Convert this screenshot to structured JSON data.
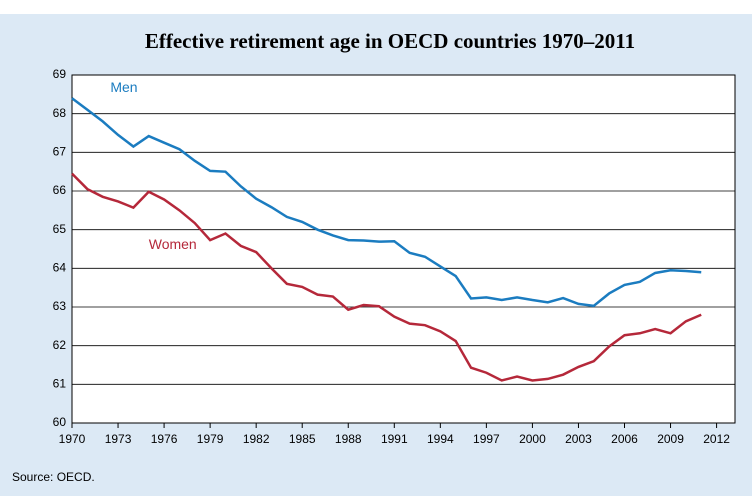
{
  "chart_data": {
    "type": "line",
    "title": "Effective retirement age in OECD countries 1970–2011",
    "source": "Source: OECD.",
    "x": [
      1970,
      1971,
      1972,
      1973,
      1974,
      1975,
      1976,
      1977,
      1978,
      1979,
      1980,
      1981,
      1982,
      1983,
      1984,
      1985,
      1986,
      1987,
      1988,
      1989,
      1990,
      1991,
      1992,
      1993,
      1994,
      1995,
      1996,
      1997,
      1998,
      1999,
      2000,
      2001,
      2002,
      2003,
      2004,
      2005,
      2006,
      2007,
      2008,
      2009,
      2010,
      2011
    ],
    "series": [
      {
        "name": "Men",
        "color": "#1b7cc0",
        "values": [
          68.4,
          68.1,
          67.8,
          67.45,
          67.15,
          67.42,
          67.25,
          67.08,
          66.78,
          66.52,
          66.5,
          66.12,
          65.8,
          65.58,
          65.33,
          65.2,
          65.0,
          64.85,
          64.73,
          64.72,
          64.69,
          64.7,
          64.4,
          64.3,
          64.05,
          63.8,
          63.22,
          63.25,
          63.18,
          63.25,
          63.18,
          63.12,
          63.23,
          63.08,
          63.03,
          63.35,
          63.57,
          63.65,
          63.88,
          63.95,
          63.93,
          63.9
        ]
      },
      {
        "name": "Women",
        "color": "#b5283a",
        "values": [
          66.45,
          66.05,
          65.85,
          65.73,
          65.57,
          65.98,
          65.78,
          65.5,
          65.17,
          64.73,
          64.9,
          64.58,
          64.42,
          64.0,
          63.6,
          63.52,
          63.32,
          63.27,
          62.93,
          63.05,
          63.02,
          62.75,
          62.57,
          62.53,
          62.37,
          62.12,
          61.43,
          61.3,
          61.1,
          61.2,
          61.1,
          61.14,
          61.25,
          61.45,
          61.6,
          61.98,
          62.27,
          62.32,
          62.43,
          62.32,
          62.63,
          62.8
        ]
      }
    ],
    "xlim": [
      1970,
      2013.2
    ],
    "xticks": [
      1970,
      1973,
      1976,
      1979,
      1982,
      1985,
      1988,
      1991,
      1994,
      1997,
      2000,
      2003,
      2006,
      2009,
      2012
    ],
    "ylim": [
      60,
      69
    ],
    "yticks": [
      60,
      61,
      62,
      63,
      64,
      65,
      66,
      67,
      68,
      69
    ],
    "grid": true
  }
}
